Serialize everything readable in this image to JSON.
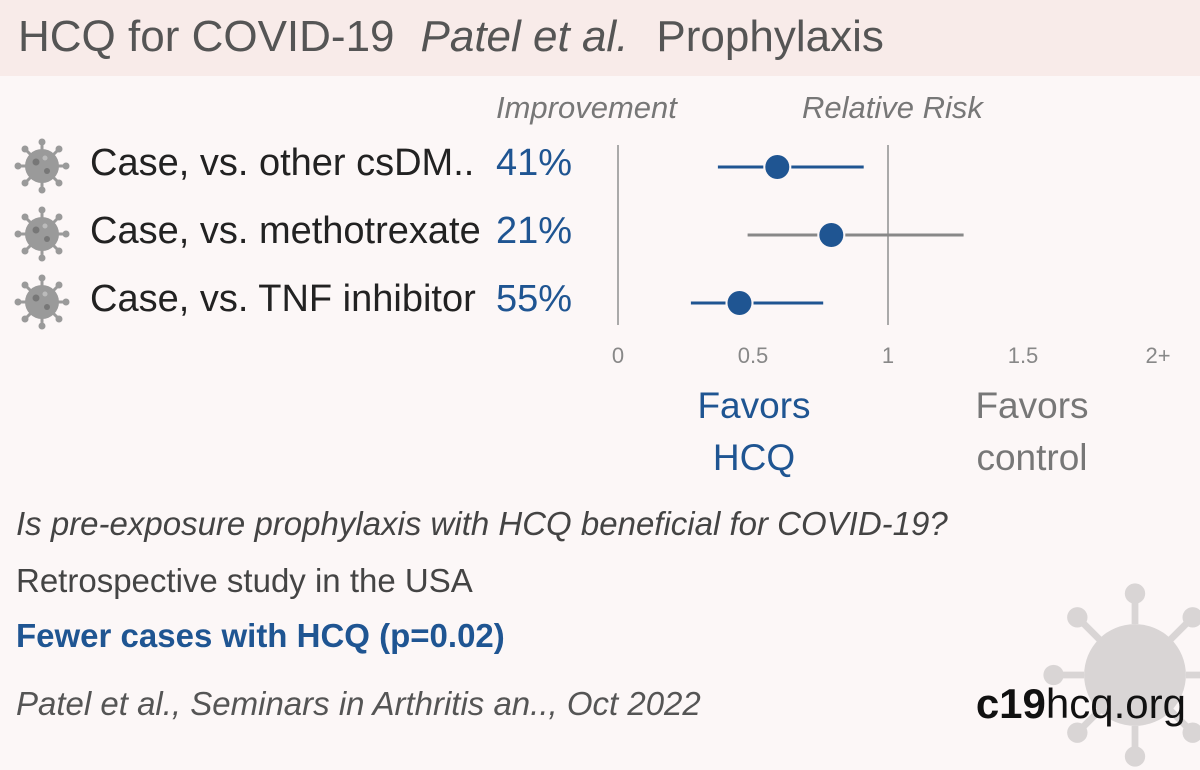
{
  "header": {
    "title": "HCQ for COVID-19",
    "authors": "Patel et al.",
    "study_type": "Prophylaxis"
  },
  "columns": {
    "improvement": "Improvement",
    "relative_risk": "Relative Risk"
  },
  "chart_data": {
    "type": "forest",
    "xlim": [
      0,
      2
    ],
    "x_ticks": [
      "0",
      "0.5",
      "1",
      "1.5",
      "2+"
    ],
    "reference_line": 1,
    "rows": [
      {
        "label": "Case, vs. other csDM..",
        "improvement": "41%",
        "rr": 0.59,
        "ci": [
          0.37,
          0.91
        ],
        "color": "#1f5592"
      },
      {
        "label": "Case, vs. methotrexate",
        "improvement": "21%",
        "rr": 0.79,
        "ci": [
          0.48,
          1.28
        ],
        "color": "#1f5592"
      },
      {
        "label": "Case, vs. TNF inhibitor",
        "improvement": "55%",
        "rr": 0.45,
        "ci": [
          0.27,
          0.76
        ],
        "color": "#1f5592"
      }
    ],
    "favors_left": [
      "Favors",
      "HCQ"
    ],
    "favors_right": [
      "Favors",
      "control"
    ]
  },
  "summary": {
    "question": "Is pre-exposure prophylaxis with HCQ beneficial for COVID-19?",
    "design": "Retrospective study in the USA",
    "conclusion": "Fewer cases with HCQ (p=0.02)",
    "citation": "Patel et al., Seminars in Arthritis an.., Oct 2022"
  },
  "brand": {
    "bold": "c19",
    "rest": "hcq.org"
  },
  "icons": {
    "row_icon": "virus-icon",
    "watermark": "virus-icon"
  }
}
